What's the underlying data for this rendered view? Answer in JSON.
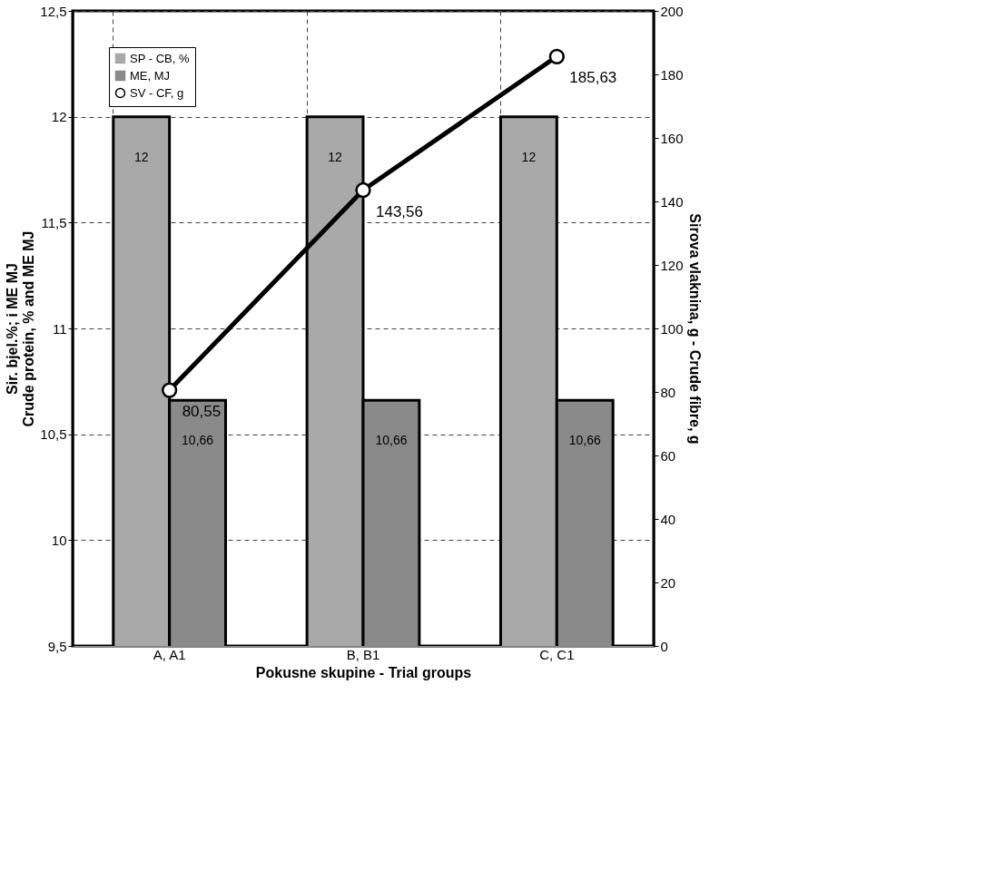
{
  "chart_data": {
    "type": "bar",
    "xlabel": "Pokusne skupine - Trial groups",
    "ylabel": "Sir. bjel.%; i ME MJ\nCrude protein, % and ME MJ",
    "y2label": "Sirova vlaknina, g - Crude fibre, g",
    "categories": [
      "A, A1",
      "B, B1",
      "C, C1"
    ],
    "series": [
      {
        "name": "SP - CB, %",
        "color": "#a9a9a9",
        "values": [
          12,
          12,
          12
        ],
        "value_labels": [
          "12",
          "12",
          "12"
        ]
      },
      {
        "name": "ME, MJ",
        "color": "#8a8a8a",
        "values": [
          10.66,
          10.66,
          10.66
        ],
        "value_labels": [
          "10,66",
          "10,66",
          "10,66"
        ]
      },
      {
        "name": "SV - CF, g",
        "type": "line",
        "axis": "y2",
        "color": "#000000",
        "values": [
          80.55,
          143.56,
          185.63
        ],
        "value_labels": [
          "80,55",
          "143,56",
          "185,63"
        ]
      }
    ],
    "ylim": [
      9.5,
      12.5
    ],
    "yticks": [
      {
        "value": 9.5,
        "label": "9,5"
      },
      10,
      {
        "value": 10.5,
        "label": "10,5"
      },
      11,
      {
        "value": 11.5,
        "label": "11,5"
      },
      12,
      {
        "value": 12.5,
        "label": "12,5"
      }
    ],
    "y2lim": [
      0,
      200
    ],
    "y2ticks": [
      0,
      20,
      40,
      60,
      80,
      100,
      120,
      140,
      160,
      180,
      200
    ],
    "grid": true,
    "legend": "top left",
    "marker": "circle",
    "line_style": "solid"
  }
}
